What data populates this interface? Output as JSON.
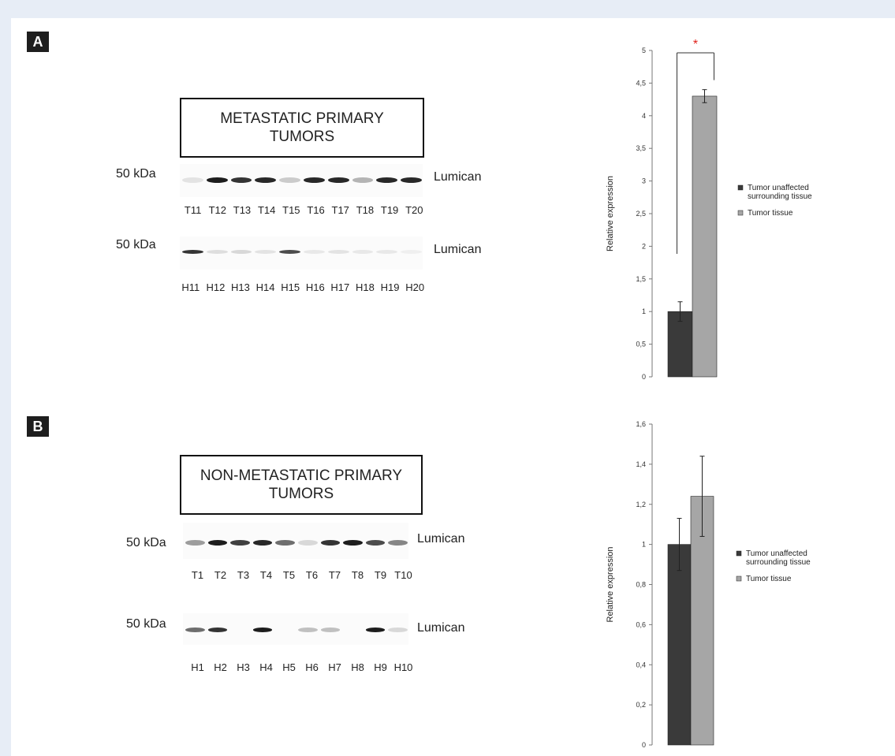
{
  "panels": [
    {
      "label": "A",
      "title": "METASTATIC PRIMARY TUMORS",
      "blot_top": {
        "marker": "50 kDa",
        "protein": "Lumican",
        "lanes": [
          "T11",
          "T12",
          "T13",
          "T14",
          "T15",
          "T16",
          "T17",
          "T18",
          "T19",
          "T20"
        ],
        "band_intensity": [
          0.1,
          0.95,
          0.85,
          0.9,
          0.2,
          0.9,
          0.9,
          0.3,
          0.9,
          0.9
        ]
      },
      "blot_bottom": {
        "marker": "50 kDa",
        "protein": "Lumican",
        "lanes": [
          "H11",
          "H12",
          "H13",
          "H14",
          "H15",
          "H16",
          "H17",
          "H18",
          "H19",
          "H20"
        ],
        "band_intensity": [
          0.85,
          0.12,
          0.15,
          0.1,
          0.75,
          0.08,
          0.1,
          0.08,
          0.08,
          0.05
        ]
      }
    },
    {
      "label": "B",
      "title": "NON-METASTATIC PRIMARY TUMORS",
      "blot_top": {
        "marker": "50 kDa",
        "protein": "Lumican",
        "lanes": [
          "T1",
          "T2",
          "T3",
          "T4",
          "T5",
          "T6",
          "T7",
          "T8",
          "T9",
          "T10"
        ],
        "band_intensity": [
          0.4,
          0.95,
          0.8,
          0.9,
          0.6,
          0.15,
          0.85,
          0.95,
          0.75,
          0.5
        ]
      },
      "blot_bottom": {
        "marker": "50 kDa",
        "protein": "Lumican",
        "lanes": [
          "H1",
          "H2",
          "H3",
          "H4",
          "H5",
          "H6",
          "H7",
          "H8",
          "H9",
          "H10"
        ],
        "band_intensity": [
          0.6,
          0.85,
          0.0,
          0.95,
          0.0,
          0.25,
          0.25,
          0.0,
          0.95,
          0.15
        ]
      }
    }
  ],
  "chart_data": [
    {
      "type": "bar",
      "ylabel": "Relative expression",
      "ylim": [
        0,
        5
      ],
      "yticks": [
        "0",
        "0,5",
        "1",
        "1,5",
        "2",
        "2,5",
        "3",
        "3,5",
        "4",
        "4,5",
        "5"
      ],
      "series": [
        {
          "name": "Tumor unaffected surrounding tissue",
          "values": [
            1.0
          ],
          "error": [
            0.15
          ],
          "color": "#3a3a3a"
        },
        {
          "name": "Tumor tissue",
          "values": [
            4.3
          ],
          "error": [
            0.1
          ],
          "color": "#a6a6a6"
        }
      ],
      "significance": "*",
      "significance_color": "#e0211b",
      "legend": "right"
    },
    {
      "type": "bar",
      "ylabel": "Relative expression",
      "ylim": [
        0,
        1.6
      ],
      "yticks": [
        "0",
        "0,2",
        "0,4",
        "0,6",
        "0,8",
        "1",
        "1,2",
        "1,4",
        "1,6"
      ],
      "series": [
        {
          "name": "Tumor unaffected surrounding tissue",
          "values": [
            1.0
          ],
          "error": [
            0.13
          ],
          "color": "#3a3a3a"
        },
        {
          "name": "Tumor tissue",
          "values": [
            1.24
          ],
          "error": [
            0.2
          ],
          "color": "#a6a6a6"
        }
      ],
      "legend": "right"
    }
  ]
}
